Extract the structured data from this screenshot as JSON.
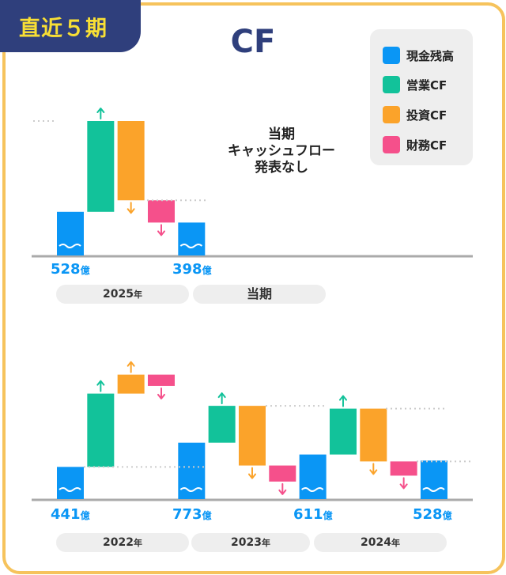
{
  "badge": "直近５期",
  "title": "CF",
  "legend": [
    {
      "label": "現金残高",
      "color": "#0a96f5"
    },
    {
      "label": "営業CF",
      "color": "#12c29a"
    },
    {
      "label": "投資CF",
      "color": "#fba32a"
    },
    {
      "label": "財務CF",
      "color": "#f5508b"
    }
  ],
  "note_lines": [
    "当期",
    "キャッシュフロー",
    "発表なし"
  ],
  "value_unit": "億",
  "year_suffix": "年",
  "chart_data": [
    {
      "type": "waterfall",
      "panel": "current",
      "periods": [
        {
          "label": "2025",
          "suffix": "年",
          "start": 528,
          "operating": 1098,
          "investing": -959,
          "financing": -269,
          "end": 398
        }
      ],
      "current_period_label": "当期",
      "start_label": "528",
      "end_label": "398"
    },
    {
      "type": "waterfall",
      "panel": "history",
      "periods": [
        {
          "label": "2022",
          "suffix": "年",
          "start": 441,
          "operating": 1005,
          "investing": 260,
          "financing": -155,
          "end": 773
        },
        {
          "label": "2023",
          "suffix": "年",
          "start": 773,
          "operating": 505,
          "investing": -818,
          "financing": -220,
          "end": 611
        },
        {
          "label": "2024",
          "suffix": "年",
          "start": 611,
          "operating": 629,
          "investing": -724,
          "financing": -195,
          "end": 528
        }
      ],
      "balance_labels": [
        "441",
        "773",
        "611",
        "528"
      ]
    }
  ]
}
